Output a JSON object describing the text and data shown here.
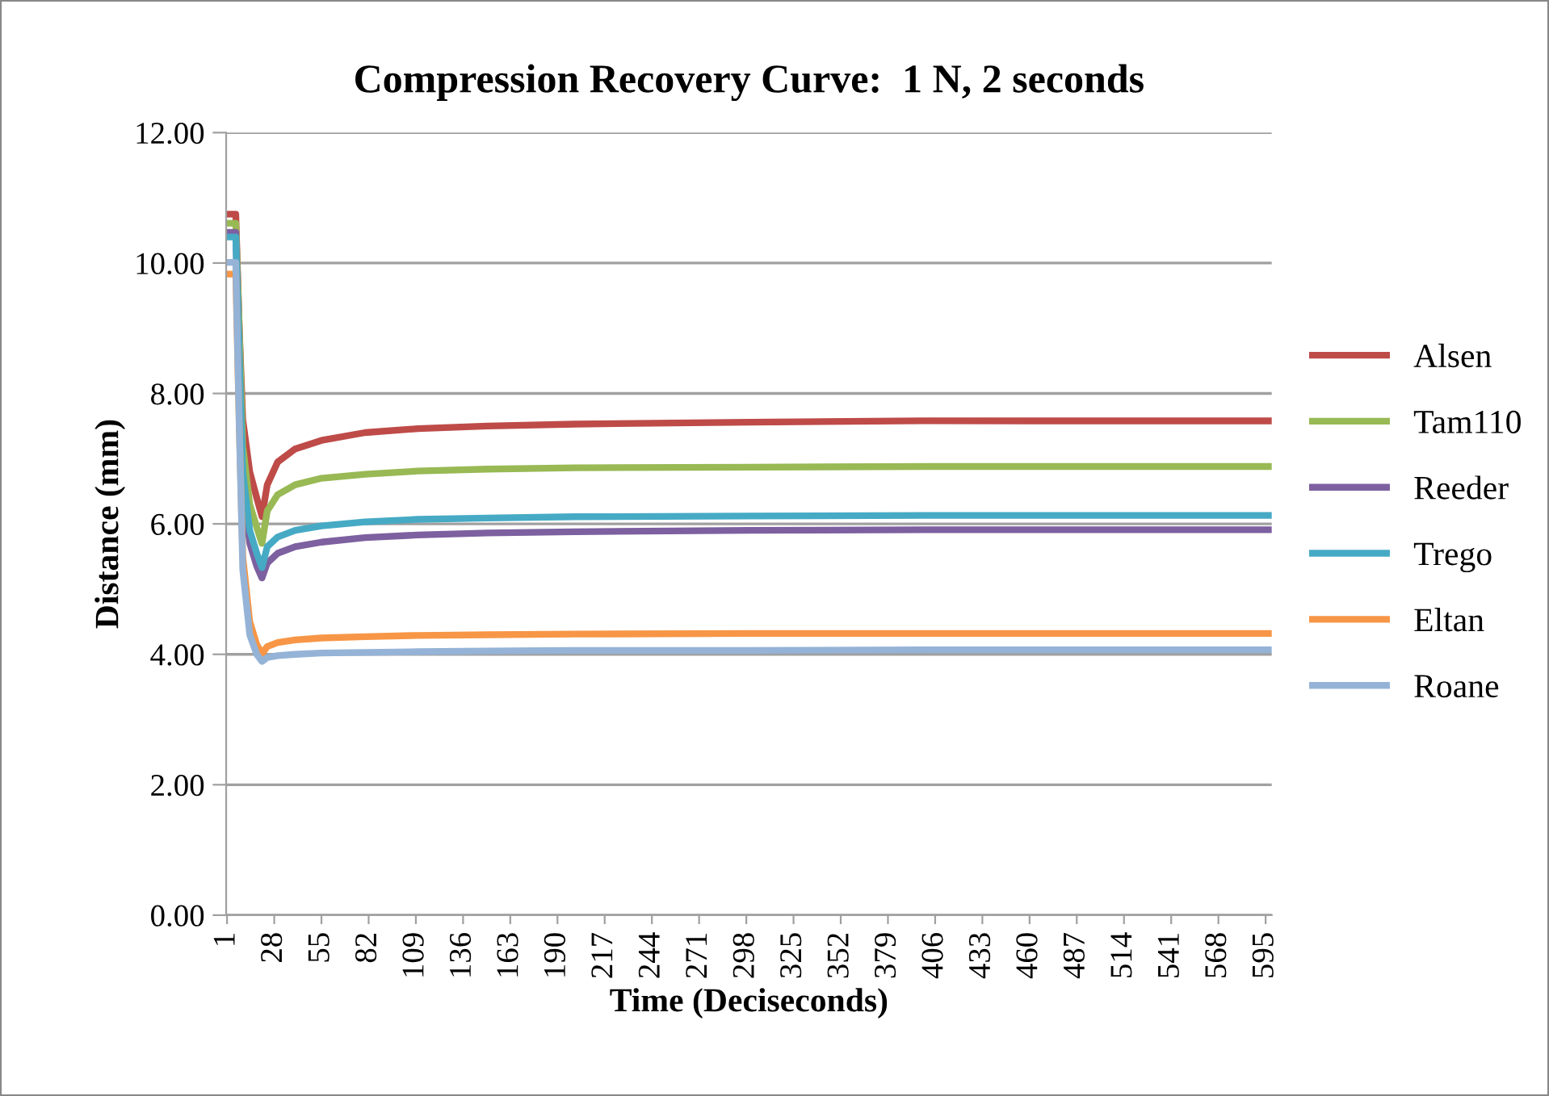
{
  "chart_data": {
    "type": "line",
    "title": "Compression Recovery Curve:  1 N, 2 seconds",
    "xlabel": "Time (Deciseconds)",
    "ylabel": "Distance (mm)",
    "x": [
      1,
      6,
      8,
      10,
      14,
      18,
      21,
      24,
      30,
      40,
      55,
      80,
      110,
      150,
      200,
      300,
      400,
      500,
      598
    ],
    "series": [
      {
        "name": "Alsen",
        "color": "#be4b48",
        "values": [
          10.75,
          10.75,
          9.0,
          7.6,
          6.8,
          6.4,
          6.11,
          6.6,
          6.95,
          7.15,
          7.28,
          7.4,
          7.46,
          7.5,
          7.53,
          7.56,
          7.58,
          7.58,
          7.58
        ]
      },
      {
        "name": "Tam110",
        "color": "#98b954",
        "values": [
          10.61,
          10.61,
          9.0,
          7.2,
          6.3,
          5.95,
          5.7,
          6.2,
          6.45,
          6.6,
          6.7,
          6.76,
          6.81,
          6.84,
          6.86,
          6.87,
          6.88,
          6.88,
          6.88
        ]
      },
      {
        "name": "Reeder",
        "color": "#7d60a0",
        "values": [
          10.47,
          10.47,
          8.5,
          6.6,
          5.7,
          5.35,
          5.17,
          5.4,
          5.55,
          5.65,
          5.72,
          5.79,
          5.83,
          5.86,
          5.88,
          5.9,
          5.91,
          5.91,
          5.91
        ]
      },
      {
        "name": "Trego",
        "color": "#46aac5",
        "values": [
          10.4,
          10.4,
          8.5,
          6.8,
          5.9,
          5.55,
          5.33,
          5.65,
          5.8,
          5.9,
          5.97,
          6.03,
          6.07,
          6.09,
          6.11,
          6.12,
          6.13,
          6.13,
          6.13
        ]
      },
      {
        "name": "Eltan",
        "color": "#f79646",
        "values": [
          9.83,
          9.83,
          7.5,
          5.5,
          4.5,
          4.15,
          4.01,
          4.12,
          4.18,
          4.22,
          4.25,
          4.27,
          4.29,
          4.3,
          4.31,
          4.32,
          4.32,
          4.32,
          4.32
        ]
      },
      {
        "name": "Roane",
        "color": "#95b3d7",
        "values": [
          10.01,
          10.01,
          7.5,
          5.3,
          4.3,
          4.0,
          3.89,
          3.95,
          3.98,
          4.0,
          4.02,
          4.03,
          4.04,
          4.05,
          4.06,
          4.06,
          4.07,
          4.07,
          4.07
        ]
      }
    ],
    "xlim": [
      0.5,
      598.5
    ],
    "xticks": [
      1,
      28,
      55,
      82,
      109,
      136,
      163,
      190,
      217,
      244,
      271,
      298,
      325,
      352,
      379,
      406,
      433,
      460,
      487,
      514,
      541,
      568,
      595
    ],
    "ylim": [
      0,
      12
    ],
    "yticks": [
      {
        "value": 0,
        "label": "0.00"
      },
      {
        "value": 2,
        "label": "2.00"
      },
      {
        "value": 4,
        "label": "4.00"
      },
      {
        "value": 6,
        "label": "6.00"
      },
      {
        "value": 8,
        "label": "8.00"
      },
      {
        "value": 10,
        "label": "10.00"
      },
      {
        "value": 12,
        "label": "12.00"
      }
    ],
    "grid": "y",
    "legend": "right",
    "marker": "none",
    "line_style": "solid"
  }
}
